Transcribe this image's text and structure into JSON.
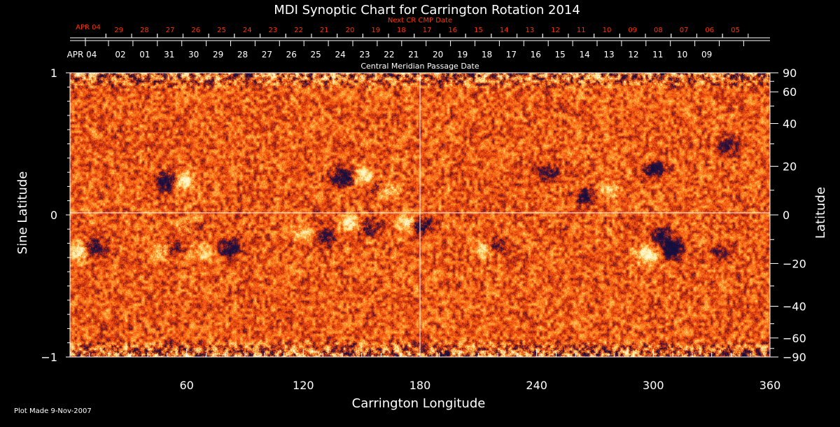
{
  "title": "MDI Synoptic Chart for Carrington Rotation 2014",
  "next_cr_label": "Next CR CMP Date",
  "cmp_label": "Central Meridian Passage Date",
  "footer": "Plot Made  9-Nov-2007",
  "colors": {
    "background": "#000000",
    "axis": "#ffffff",
    "next_cr_text": "#ff3300",
    "map_base": "#ff5a14",
    "positive_polarity": "#fff6c8",
    "negative_polarity": "#141046"
  },
  "chart_data": {
    "type": "heatmap",
    "title": "MDI Synoptic Chart for Carrington Rotation 2014",
    "xlabel": "Carrington Longitude",
    "ylabel_left": "Sine Latitude",
    "ylabel_right": "Latitude",
    "xlim": [
      0,
      360
    ],
    "ylim": [
      -1,
      1
    ],
    "x_ticks": [
      60,
      120,
      180,
      240,
      300,
      360
    ],
    "x_tick_labels": [
      "60",
      "120",
      "180",
      "240",
      "300",
      "360"
    ],
    "y_left_ticks": [
      -1,
      0,
      1
    ],
    "y_left_tick_labels": [
      "−1",
      "0",
      "1"
    ],
    "y_right_ticks": [
      90,
      60,
      40,
      20,
      0,
      -20,
      -40,
      -60,
      -90
    ],
    "y_right_tick_labels": [
      "90",
      "60",
      "40",
      "20",
      "0",
      "−20",
      "−40",
      "−60",
      "−90"
    ],
    "next_cr_dates": [
      "APR 04",
      "29",
      "28",
      "27",
      "26",
      "25",
      "24",
      "23",
      "22",
      "21",
      "20",
      "19",
      "18",
      "17",
      "16",
      "15",
      "14",
      "13",
      "12",
      "11",
      "10",
      "09",
      "08",
      "07",
      "06",
      "05"
    ],
    "cmp_dates": [
      "APR 04",
      "02",
      "01",
      "31",
      "30",
      "29",
      "28",
      "27",
      "26",
      "25",
      "24",
      "23",
      "22",
      "21",
      "20",
      "19",
      "18",
      "17",
      "16",
      "15",
      "14",
      "13",
      "12",
      "11",
      "10",
      "09"
    ],
    "reference_lines": {
      "longitude": 180,
      "sine_latitude": 0
    },
    "grid": false,
    "regions": [
      {
        "lon": 50,
        "sinlat": 0.24,
        "polarity": "negative",
        "strength": 1.0
      },
      {
        "lon": 58,
        "sinlat": 0.24,
        "polarity": "positive",
        "strength": 0.9
      },
      {
        "lon": 60,
        "sinlat": -0.08,
        "polarity": "positive",
        "strength": 0.7
      },
      {
        "lon": 62,
        "sinlat": -0.09,
        "polarity": "negative",
        "strength": 0.6
      },
      {
        "lon": 5,
        "sinlat": -0.25,
        "polarity": "positive",
        "strength": 0.9
      },
      {
        "lon": 12,
        "sinlat": -0.23,
        "polarity": "negative",
        "strength": 0.8
      },
      {
        "lon": 48,
        "sinlat": -0.24,
        "polarity": "positive",
        "strength": 0.6
      },
      {
        "lon": 52,
        "sinlat": -0.23,
        "polarity": "negative",
        "strength": 0.6
      },
      {
        "lon": 68,
        "sinlat": -0.27,
        "polarity": "positive",
        "strength": 0.5
      },
      {
        "lon": 82,
        "sinlat": -0.24,
        "polarity": "negative",
        "strength": 0.8
      },
      {
        "lon": 120,
        "sinlat": -0.13,
        "polarity": "positive",
        "strength": 0.6
      },
      {
        "lon": 131,
        "sinlat": -0.15,
        "polarity": "negative",
        "strength": 0.7
      },
      {
        "lon": 141,
        "sinlat": 0.27,
        "polarity": "negative",
        "strength": 1.0
      },
      {
        "lon": 151,
        "sinlat": 0.27,
        "polarity": "positive",
        "strength": 0.9
      },
      {
        "lon": 158,
        "sinlat": 0.2,
        "polarity": "negative",
        "strength": 0.6
      },
      {
        "lon": 162,
        "sinlat": 0.18,
        "polarity": "positive",
        "strength": 0.7
      },
      {
        "lon": 145,
        "sinlat": -0.06,
        "polarity": "positive",
        "strength": 0.8
      },
      {
        "lon": 152,
        "sinlat": -0.08,
        "polarity": "negative",
        "strength": 0.7
      },
      {
        "lon": 174,
        "sinlat": -0.06,
        "polarity": "positive",
        "strength": 0.9
      },
      {
        "lon": 180,
        "sinlat": -0.07,
        "polarity": "negative",
        "strength": 1.0
      },
      {
        "lon": 213,
        "sinlat": -0.24,
        "polarity": "positive",
        "strength": 0.6
      },
      {
        "lon": 220,
        "sinlat": -0.21,
        "polarity": "negative",
        "strength": 0.6
      },
      {
        "lon": 245,
        "sinlat": 0.3,
        "polarity": "negative",
        "strength": 0.6
      },
      {
        "lon": 265,
        "sinlat": 0.13,
        "polarity": "negative",
        "strength": 0.6
      },
      {
        "lon": 277,
        "sinlat": 0.18,
        "polarity": "positive",
        "strength": 0.5
      },
      {
        "lon": 300,
        "sinlat": 0.32,
        "polarity": "negative",
        "strength": 0.8
      },
      {
        "lon": 297,
        "sinlat": -0.28,
        "polarity": "positive",
        "strength": 1.0
      },
      {
        "lon": 309,
        "sinlat": -0.24,
        "polarity": "negative",
        "strength": 1.0
      },
      {
        "lon": 305,
        "sinlat": -0.14,
        "polarity": "negative",
        "strength": 0.6
      },
      {
        "lon": 335,
        "sinlat": -0.26,
        "polarity": "negative",
        "strength": 0.4
      },
      {
        "lon": 338,
        "sinlat": 0.48,
        "polarity": "negative",
        "strength": 0.5
      }
    ]
  }
}
